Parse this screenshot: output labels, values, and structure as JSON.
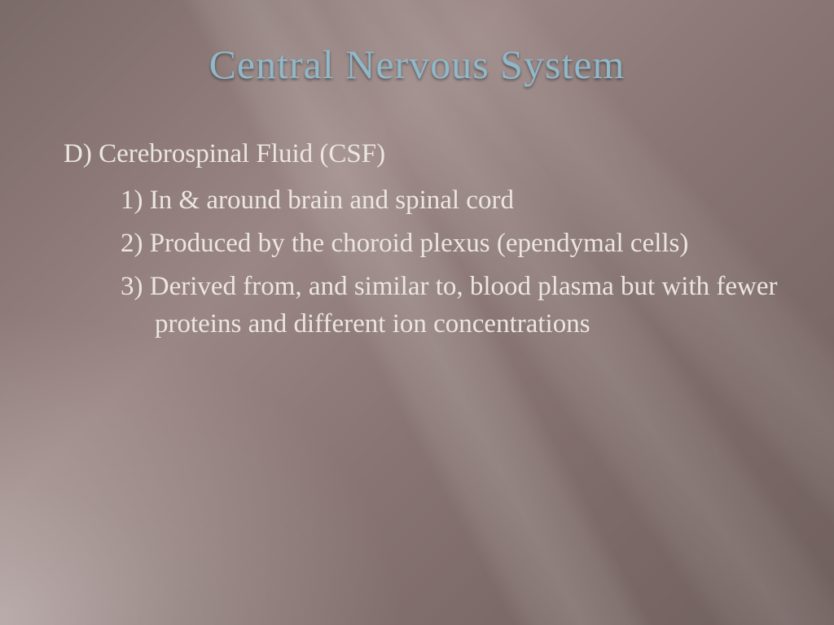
{
  "slide": {
    "title": "Central Nervous System",
    "section_label": "D) Cerebrospinal Fluid (CSF)",
    "items": [
      "1) In & around brain and spinal cord",
      "2) Produced by the choroid plexus (ependymal cells)",
      "3) Derived from, and similar to, blood plasma but with fewer proteins and different ion concentrations"
    ],
    "style": {
      "title_color": "#8fb8c9",
      "body_color": "#ece6e2",
      "title_fontsize": 50,
      "body_fontsize": 33,
      "background_base": "#8a7775",
      "ray_tint": "rgba(255,255,255,0.12)"
    }
  }
}
